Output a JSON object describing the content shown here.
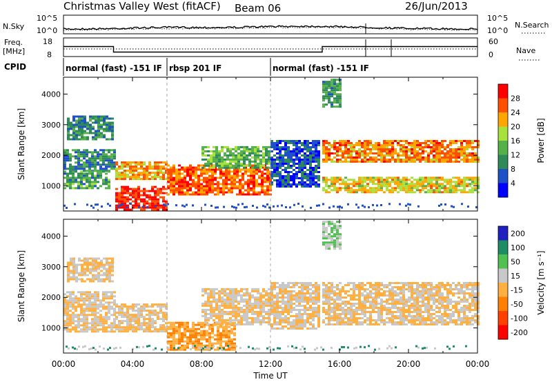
{
  "header": {
    "title": "Christmas Valley West (fitACF)",
    "beam": "Beam 06",
    "date": "26/Jun/2013"
  },
  "noise_panel": {
    "left_label": "N.Sky",
    "left_ticks": [
      "10^5",
      "10^0"
    ],
    "right_ticks": [
      "10^5",
      "10^0"
    ],
    "right_label": "N.Search"
  },
  "freq_panel": {
    "left_label_1": "Freq.",
    "left_label_2": "[MHz]",
    "left_ticks": [
      "18",
      "8"
    ],
    "right_ticks": [
      "60",
      "0"
    ],
    "right_label": "Nave",
    "freq_series_hours": [
      0,
      2.9,
      2.9,
      15,
      15,
      24
    ],
    "freq_series_mhz": [
      13.8,
      13.8,
      10.6,
      10.6,
      13.8,
      13.8
    ]
  },
  "cpid": {
    "label": "CPID",
    "segments": [
      {
        "text": "normal (fast) -151 IF",
        "start": 0
      },
      {
        "text": "rbsp 201 IF",
        "start": 6
      },
      {
        "text": "normal (fast) -151 IF",
        "start": 12
      }
    ]
  },
  "chart_data": [
    {
      "type": "heatmap",
      "panel": "power",
      "xlabel": "",
      "ylabel": "Slant Range [km]",
      "xlim": [
        0,
        24
      ],
      "ylim": [
        180,
        4550
      ],
      "yticks": [
        "1000",
        "2000",
        "3000",
        "4000"
      ],
      "colorbar_label": "Power [dB]",
      "colorbar_ticks": [
        "4",
        "8",
        "12",
        "16",
        "20",
        "24",
        "28"
      ],
      "colorbar_range": [
        0,
        32
      ],
      "colors": [
        "#0000ff",
        "#1e50c8",
        "#2e8b57",
        "#55b04a",
        "#a8e03c",
        "#ffa500",
        "#ff5000",
        "#ff0000"
      ],
      "regions": [
        {
          "t0": 0.2,
          "t1": 2.9,
          "r0": 2500,
          "r1": 3300,
          "val": 10
        },
        {
          "t0": 0.0,
          "t1": 2.9,
          "r0": 1500,
          "r1": 2200,
          "val": 9
        },
        {
          "t0": 0.0,
          "t1": 2.6,
          "r0": 900,
          "r1": 1500,
          "val": 12
        },
        {
          "t0": 3.0,
          "t1": 6.0,
          "r0": 1200,
          "r1": 1800,
          "val": 22
        },
        {
          "t0": 3.0,
          "t1": 6.0,
          "r0": 200,
          "r1": 1000,
          "val": 29
        },
        {
          "t0": 6.0,
          "t1": 12.0,
          "r0": 700,
          "r1": 1700,
          "val": 26
        },
        {
          "t0": 8.0,
          "t1": 12.0,
          "r0": 1600,
          "r1": 2300,
          "val": 14
        },
        {
          "t0": 12.0,
          "t1": 14.8,
          "r0": 1000,
          "r1": 2500,
          "val": 6
        },
        {
          "t0": 15.0,
          "t1": 24.0,
          "r0": 1800,
          "r1": 2500,
          "val": 24
        },
        {
          "t0": 15.0,
          "t1": 24.0,
          "r0": 800,
          "r1": 1300,
          "val": 20
        },
        {
          "t0": 15.0,
          "t1": 16.0,
          "r0": 3600,
          "r1": 4500,
          "val": 11
        }
      ]
    },
    {
      "type": "heatmap",
      "panel": "velocity",
      "xlabel": "Time UT",
      "ylabel": "Slant Range [km]",
      "xlim": [
        0,
        24
      ],
      "ylim": [
        180,
        4550
      ],
      "xticks": [
        "00:00",
        "04:00",
        "08:00",
        "12:00",
        "16:00",
        "20:00",
        "00:00"
      ],
      "yticks": [
        "1000",
        "2000",
        "3000",
        "4000"
      ],
      "colorbar_label": "Velocity [m s⁻¹]",
      "colorbar_ticks": [
        "200",
        "100",
        "50",
        "15",
        "-15",
        "-50",
        "-100",
        "-200"
      ],
      "colorbar_range": [
        -250,
        250
      ],
      "colors": [
        "#2020c0",
        "#1e8c64",
        "#50c050",
        "#c8c8c8",
        "#ffb040",
        "#ff8000",
        "#ff4000",
        "#ff0000"
      ],
      "regions": [
        {
          "t0": 0.2,
          "t1": 2.9,
          "r0": 2500,
          "r1": 3300,
          "val": 0
        },
        {
          "t0": 0.0,
          "t1": 2.9,
          "r0": 900,
          "r1": 2200,
          "val": 0
        },
        {
          "t0": 3.0,
          "t1": 6.0,
          "r0": 900,
          "r1": 1800,
          "val": 0
        },
        {
          "t0": 6.0,
          "t1": 10.0,
          "r0": 300,
          "r1": 1200,
          "val": -60
        },
        {
          "t0": 8.0,
          "t1": 12.0,
          "r0": 1100,
          "r1": 2300,
          "val": 0
        },
        {
          "t0": 12.0,
          "t1": 14.8,
          "r0": 1000,
          "r1": 2500,
          "val": 0
        },
        {
          "t0": 15.0,
          "t1": 24.0,
          "r0": 1100,
          "r1": 2500,
          "val": 0
        },
        {
          "t0": 15.0,
          "t1": 16.0,
          "r0": 3600,
          "r1": 4500,
          "val": 60
        }
      ]
    }
  ]
}
